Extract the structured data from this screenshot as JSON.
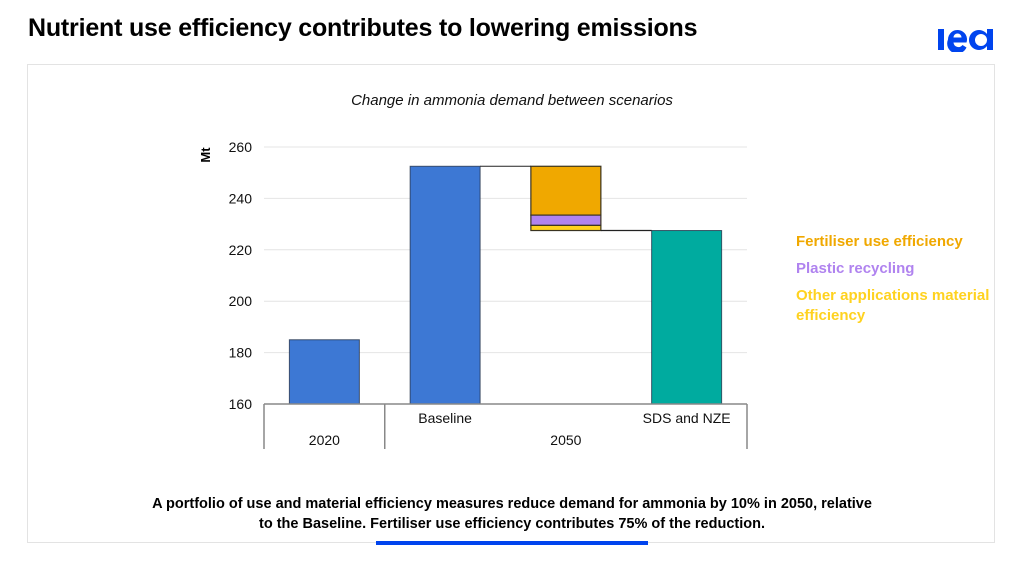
{
  "header": {
    "title": "Nutrient use efficiency contributes to lowering emissions",
    "logo_text": "iea",
    "logo_color": "#0044ee"
  },
  "caption": {
    "line1": "A portfolio of use and material efficiency measures reduce demand for ammonia by 10% in 2050, relative",
    "line2": "to the Baseline. Fertiliser use efficiency contributes 75% of the reduction."
  },
  "chart_data": {
    "type": "waterfall",
    "title": "Change in ammonia demand between scenarios",
    "ylabel": "Mt",
    "xlabel": "",
    "ylim": [
      160,
      260
    ],
    "yticks": [
      160,
      180,
      200,
      220,
      240,
      260
    ],
    "grid": true,
    "legend_position": "right",
    "categories": [
      {
        "label": "",
        "group": "2020"
      },
      {
        "label": "Baseline",
        "group": "2050"
      },
      {
        "label": "",
        "group": "2050"
      },
      {
        "label": "SDS and NZE",
        "group": "2050"
      }
    ],
    "groups": [
      "2020",
      "2050"
    ],
    "bars": [
      {
        "name": "2020",
        "type": "total",
        "value": 185,
        "color": "#3d78d4"
      },
      {
        "name": "Baseline",
        "type": "total",
        "value": 252.5,
        "color": "#3d78d4"
      },
      {
        "name": "SDS and NZE",
        "type": "total",
        "value": 227.5,
        "color": "#00ab9f"
      }
    ],
    "reductions": [
      {
        "name": "Fertiliser use efficiency",
        "value": -19,
        "color": "#f0a800"
      },
      {
        "name": "Plastic recycling",
        "value": -4,
        "color": "#b083ef"
      },
      {
        "name": "Other applications material efficiency",
        "value": -2,
        "color": "#ffd21f"
      }
    ],
    "legend": [
      {
        "label": "Fertiliser use efficiency",
        "color": "#f0a800"
      },
      {
        "label": "Plastic recycling",
        "color": "#b083ef"
      },
      {
        "label": "Other applications material efficiency",
        "color": "#ffd21f"
      }
    ]
  }
}
